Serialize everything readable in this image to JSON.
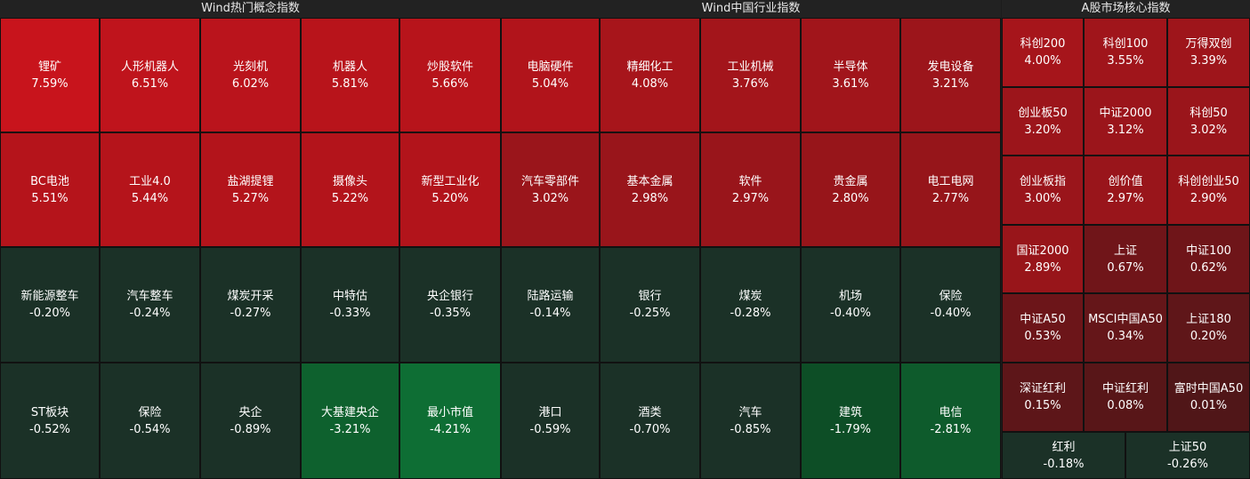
{
  "chart_data": {
    "type": "heatmap",
    "panels": [
      {
        "title": "Wind热门概念指数",
        "cols": 5,
        "tiles": [
          {
            "name": "锂矿",
            "value": "7.59%"
          },
          {
            "name": "人形机器人",
            "value": "6.51%"
          },
          {
            "name": "光刻机",
            "value": "6.02%"
          },
          {
            "name": "机器人",
            "value": "5.81%"
          },
          {
            "name": "炒股软件",
            "value": "5.66%"
          },
          {
            "name": "BC电池",
            "value": "5.51%"
          },
          {
            "name": "工业4.0",
            "value": "5.44%"
          },
          {
            "name": "盐湖提锂",
            "value": "5.27%"
          },
          {
            "name": "摄像头",
            "value": "5.22%"
          },
          {
            "name": "新型工业化",
            "value": "5.20%"
          },
          {
            "name": "新能源整车",
            "value": "-0.20%"
          },
          {
            "name": "汽车整车",
            "value": "-0.24%"
          },
          {
            "name": "煤炭开采",
            "value": "-0.27%"
          },
          {
            "name": "中特估",
            "value": "-0.33%"
          },
          {
            "name": "央企银行",
            "value": "-0.35%"
          },
          {
            "name": "ST板块",
            "value": "-0.52%"
          },
          {
            "name": "保险",
            "value": "-0.54%"
          },
          {
            "name": "央企",
            "value": "-0.89%"
          },
          {
            "name": "大基建央企",
            "value": "-3.21%"
          },
          {
            "name": "最小市值",
            "value": "-4.21%"
          }
        ]
      },
      {
        "title": "Wind中国行业指数",
        "cols": 5,
        "tiles": [
          {
            "name": "电脑硬件",
            "value": "5.04%"
          },
          {
            "name": "精细化工",
            "value": "4.08%"
          },
          {
            "name": "工业机械",
            "value": "3.76%"
          },
          {
            "name": "半导体",
            "value": "3.61%"
          },
          {
            "name": "发电设备",
            "value": "3.21%"
          },
          {
            "name": "汽车零部件",
            "value": "3.02%"
          },
          {
            "name": "基本金属",
            "value": "2.98%"
          },
          {
            "name": "软件",
            "value": "2.97%"
          },
          {
            "name": "贵金属",
            "value": "2.80%"
          },
          {
            "name": "电工电网",
            "value": "2.77%"
          },
          {
            "name": "陆路运输",
            "value": "-0.14%"
          },
          {
            "name": "银行",
            "value": "-0.25%"
          },
          {
            "name": "煤炭",
            "value": "-0.28%"
          },
          {
            "name": "机场",
            "value": "-0.40%"
          },
          {
            "name": "保险",
            "value": "-0.40%"
          },
          {
            "name": "港口",
            "value": "-0.59%"
          },
          {
            "name": "酒类",
            "value": "-0.70%"
          },
          {
            "name": "汽车",
            "value": "-0.85%"
          },
          {
            "name": "建筑",
            "value": "-1.79%"
          },
          {
            "name": "电信",
            "value": "-2.81%"
          }
        ]
      },
      {
        "title": "A股市场核心指数",
        "cols": 3,
        "tiles": [
          {
            "name": "科创200",
            "value": "4.00%"
          },
          {
            "name": "科创100",
            "value": "3.55%"
          },
          {
            "name": "万得双创",
            "value": "3.39%"
          },
          {
            "name": "创业板50",
            "value": "3.20%"
          },
          {
            "name": "中证2000",
            "value": "3.12%"
          },
          {
            "name": "科创50",
            "value": "3.02%"
          },
          {
            "name": "创业板指",
            "value": "3.00%"
          },
          {
            "name": "创价值",
            "value": "2.97%"
          },
          {
            "name": "科创创业50",
            "value": "2.90%"
          },
          {
            "name": "国证2000",
            "value": "2.89%"
          },
          {
            "name": "上证",
            "value": "0.67%"
          },
          {
            "name": "中证100",
            "value": "0.62%"
          },
          {
            "name": "中证A50",
            "value": "0.53%"
          },
          {
            "name": "MSCI中国A50",
            "value": "0.34%"
          },
          {
            "name": "上证180",
            "value": "0.20%"
          },
          {
            "name": "深证红利",
            "value": "0.15%"
          },
          {
            "name": "中证红利",
            "value": "0.08%"
          },
          {
            "name": "富时中国A50",
            "value": "0.01%"
          },
          {
            "name": "红利",
            "value": "-0.18%"
          },
          {
            "name": "上证50",
            "value": "-0.26%"
          }
        ]
      }
    ]
  }
}
